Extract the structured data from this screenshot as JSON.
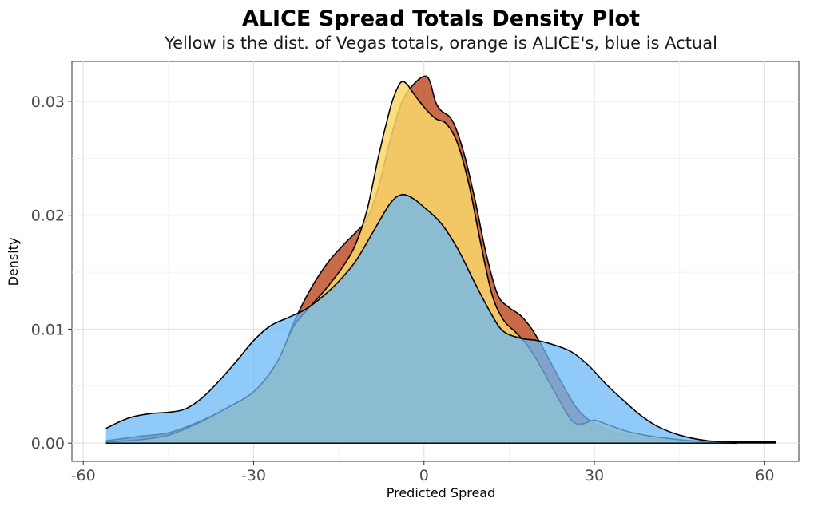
{
  "chart_data": {
    "type": "area",
    "title": "ALICE Spread Totals Density Plot",
    "subtitle": "Yellow is the dist. of Vegas totals, orange is ALICE's, blue is Actual",
    "xlabel": "Predicted Spread",
    "ylabel": "Density",
    "xlim": [
      -62,
      66
    ],
    "ylim": [
      -0.0016,
      0.0335
    ],
    "x_ticks": [
      -60,
      -30,
      0,
      30,
      60
    ],
    "x_tick_labels": [
      "-60",
      "-30",
      "0",
      "30",
      "60"
    ],
    "y_ticks": [
      0.0,
      0.01,
      0.02,
      0.03
    ],
    "y_tick_labels": [
      "0.00",
      "0.01",
      "0.02",
      "0.03"
    ],
    "grid": true,
    "series": [
      {
        "name": "ALICE",
        "fill": "#c0502a",
        "opacity": 0.85,
        "points": [
          [
            -56,
            0.0002
          ],
          [
            -50,
            0.0006
          ],
          [
            -45,
            0.0009
          ],
          [
            -40,
            0.0018
          ],
          [
            -35,
            0.003
          ],
          [
            -30,
            0.0045
          ],
          [
            -26,
            0.0068
          ],
          [
            -23,
            0.0105
          ],
          [
            -20,
            0.0135
          ],
          [
            -17,
            0.0158
          ],
          [
            -14,
            0.0175
          ],
          [
            -12,
            0.0185
          ],
          [
            -10,
            0.0197
          ],
          [
            -8,
            0.0225
          ],
          [
            -6,
            0.0265
          ],
          [
            -4,
            0.0298
          ],
          [
            -2,
            0.0314
          ],
          [
            0,
            0.0322
          ],
          [
            1,
            0.0318
          ],
          [
            2,
            0.03
          ],
          [
            3,
            0.0292
          ],
          [
            5,
            0.0283
          ],
          [
            7,
            0.0255
          ],
          [
            9,
            0.0213
          ],
          [
            11,
            0.0165
          ],
          [
            13,
            0.013
          ],
          [
            15,
            0.0119
          ],
          [
            17,
            0.0112
          ],
          [
            19,
            0.01
          ],
          [
            21,
            0.0083
          ],
          [
            24,
            0.0055
          ],
          [
            27,
            0.003
          ],
          [
            30,
            0.0017
          ],
          [
            33,
            0.001
          ],
          [
            36,
            0.0007
          ],
          [
            40,
            0.0004
          ],
          [
            45,
            0.0002
          ],
          [
            50,
            0.0001
          ],
          [
            55,
            0.0
          ]
        ]
      },
      {
        "name": "Vegas",
        "fill": "#fad76a",
        "opacity": 0.85,
        "points": [
          [
            -56,
            0.0001
          ],
          [
            -50,
            0.0003
          ],
          [
            -45,
            0.0007
          ],
          [
            -40,
            0.0017
          ],
          [
            -35,
            0.003
          ],
          [
            -30,
            0.0045
          ],
          [
            -26,
            0.007
          ],
          [
            -23,
            0.0102
          ],
          [
            -20,
            0.012
          ],
          [
            -17,
            0.0137
          ],
          [
            -14,
            0.0157
          ],
          [
            -12,
            0.0175
          ],
          [
            -10,
            0.0205
          ],
          [
            -8,
            0.0252
          ],
          [
            -6,
            0.0293
          ],
          [
            -5,
            0.0308
          ],
          [
            -4,
            0.0317
          ],
          [
            -3,
            0.0315
          ],
          [
            -2,
            0.0308
          ],
          [
            0,
            0.0295
          ],
          [
            2,
            0.0285
          ],
          [
            4,
            0.028
          ],
          [
            6,
            0.0262
          ],
          [
            8,
            0.0225
          ],
          [
            10,
            0.0175
          ],
          [
            12,
            0.013
          ],
          [
            14,
            0.0108
          ],
          [
            16,
            0.0098
          ],
          [
            18,
            0.0087
          ],
          [
            20,
            0.0072
          ],
          [
            23,
            0.0045
          ],
          [
            26,
            0.002
          ],
          [
            28,
            0.0017
          ],
          [
            30,
            0.002
          ],
          [
            33,
            0.0015
          ],
          [
            36,
            0.001
          ],
          [
            40,
            0.0006
          ],
          [
            45,
            0.0003
          ],
          [
            50,
            0.0001
          ],
          [
            55,
            0.0
          ]
        ]
      },
      {
        "name": "Actual",
        "fill": "#6ab8f7",
        "opacity": 0.75,
        "points": [
          [
            -56,
            0.0013
          ],
          [
            -52,
            0.0022
          ],
          [
            -48,
            0.0026
          ],
          [
            -45,
            0.0027
          ],
          [
            -42,
            0.003
          ],
          [
            -39,
            0.004
          ],
          [
            -36,
            0.0055
          ],
          [
            -33,
            0.0072
          ],
          [
            -30,
            0.009
          ],
          [
            -27,
            0.0103
          ],
          [
            -24,
            0.011
          ],
          [
            -21,
            0.0117
          ],
          [
            -18,
            0.0128
          ],
          [
            -15,
            0.0142
          ],
          [
            -12,
            0.016
          ],
          [
            -9,
            0.0185
          ],
          [
            -6,
            0.021
          ],
          [
            -4,
            0.0218
          ],
          [
            -2,
            0.0215
          ],
          [
            0,
            0.0207
          ],
          [
            3,
            0.0193
          ],
          [
            6,
            0.017
          ],
          [
            9,
            0.014
          ],
          [
            12,
            0.0112
          ],
          [
            14,
            0.0098
          ],
          [
            17,
            0.0092
          ],
          [
            20,
            0.009
          ],
          [
            23,
            0.0086
          ],
          [
            26,
            0.008
          ],
          [
            29,
            0.0068
          ],
          [
            32,
            0.0052
          ],
          [
            35,
            0.0038
          ],
          [
            38,
            0.0025
          ],
          [
            41,
            0.0015
          ],
          [
            45,
            0.0007
          ],
          [
            50,
            0.0002
          ],
          [
            55,
            0.0001
          ],
          [
            62,
            0.0001
          ]
        ]
      }
    ]
  }
}
